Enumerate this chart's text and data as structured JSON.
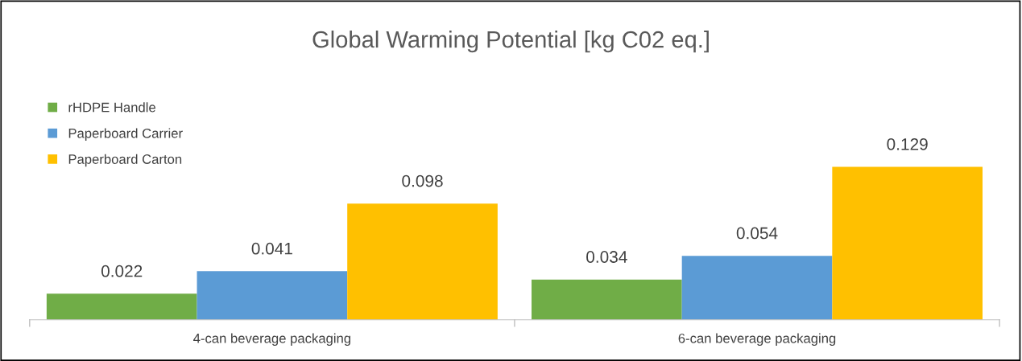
{
  "chart_data": {
    "type": "bar",
    "title": "Global Warming Potential [kg C02 eq.]",
    "categories": [
      "4-can beverage packaging",
      "6-can beverage packaging"
    ],
    "series": [
      {
        "name": "rHDPE Handle",
        "color": "#70ad47",
        "values": [
          0.022,
          0.034
        ]
      },
      {
        "name": "Paperboard Carrier",
        "color": "#5b9bd5",
        "values": [
          0.041,
          0.054
        ]
      },
      {
        "name": "Paperboard Carton",
        "color": "#ffc000",
        "values": [
          0.098,
          0.129
        ]
      }
    ],
    "tick_labels": "x",
    "data_labels": true,
    "legend": "top left",
    "grid": false
  }
}
